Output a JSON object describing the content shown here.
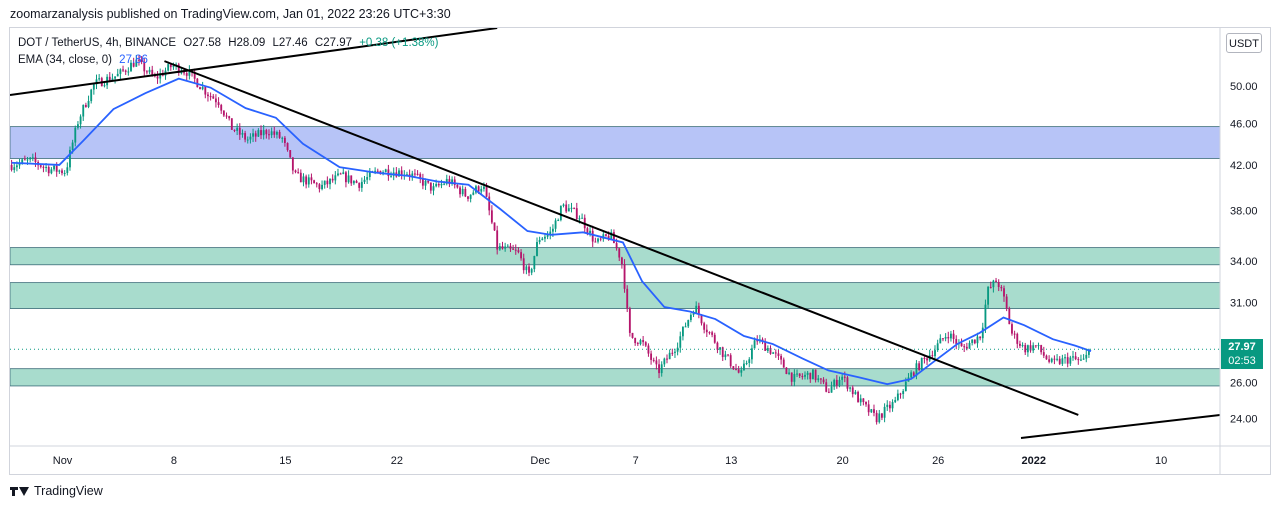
{
  "header": {
    "publisher_line": "zoomarzanalysis published on TradingView.com, Jan 01, 2022 23:26 UTC+3:30"
  },
  "legend": {
    "symbol": "DOT / TetherUS, 4h, BINANCE",
    "open": "O27.58",
    "high": "H28.09",
    "low": "L27.46",
    "close": "C27.97",
    "change": "+0.38 (+1.38%)",
    "ema_label": "EMA (34, close, 0)",
    "ema_value": "27.86"
  },
  "currency_button": "USDT",
  "last_price": {
    "price": "27.97",
    "countdown": "02:53"
  },
  "footer": {
    "brand": "TradingView"
  },
  "colors": {
    "up": "#089981",
    "down": "#b5156b",
    "ema": "#2962ff",
    "zone_blue": "#b7c4f7",
    "zone_green": "#a8dccd",
    "trendline": "#000000"
  },
  "chart_data": {
    "type": "candlestick",
    "y_scale": "log",
    "y_ticks": [
      24,
      26,
      31,
      34,
      38,
      42,
      46,
      50
    ],
    "y_tick_labels": [
      "24.00",
      "26.00",
      "31.00",
      "34.00",
      "38.00",
      "42.00",
      "46.00",
      "50.00"
    ],
    "x_ticks": [
      {
        "label": "Nov",
        "day": 0
      },
      {
        "label": "8",
        "day": 7
      },
      {
        "label": "15",
        "day": 14
      },
      {
        "label": "22",
        "day": 21
      },
      {
        "label": "Dec",
        "day": 30
      },
      {
        "label": "7",
        "day": 36
      },
      {
        "label": "13",
        "day": 42
      },
      {
        "label": "20",
        "day": 49
      },
      {
        "label": "26",
        "day": 55
      },
      {
        "label": "2022",
        "day": 61
      },
      {
        "label": "10",
        "day": 69
      }
    ],
    "x_range_days": [
      -3.3,
      72.7
    ],
    "y_range": [
      22.6,
      56.8
    ],
    "zones": [
      {
        "color": "blue",
        "low": 42.6,
        "high": 45.7
      },
      {
        "color": "green",
        "low": 33.7,
        "high": 35.0
      },
      {
        "color": "green",
        "low": 30.6,
        "high": 32.4
      },
      {
        "color": "green",
        "low": 25.8,
        "high": 26.8
      }
    ],
    "trendlines": [
      {
        "from": {
          "day": -3.3,
          "price": 49.0
        },
        "to": {
          "day": 27.3,
          "price": 56.8
        }
      },
      {
        "from": {
          "day": 6.4,
          "price": 52.8
        },
        "to": {
          "day": 63.8,
          "price": 24.2
        }
      },
      {
        "from": {
          "day": 60.2,
          "price": 23.0
        },
        "to": {
          "day": 72.7,
          "price": 24.2
        }
      }
    ],
    "price_path": [
      [
        -3.2,
        42.0
      ],
      [
        -2.0,
        42.4
      ],
      [
        -0.8,
        41.6
      ],
      [
        0.2,
        41.4
      ],
      [
        1.0,
        46.4
      ],
      [
        2.0,
        50.2
      ],
      [
        3.5,
        51.2
      ],
      [
        4.6,
        52.8
      ],
      [
        5.8,
        50.8
      ],
      [
        6.9,
        52.3
      ],
      [
        7.8,
        51.6
      ],
      [
        9.1,
        49.2
      ],
      [
        9.8,
        48.3
      ],
      [
        10.6,
        45.6
      ],
      [
        11.6,
        44.4
      ],
      [
        12.9,
        45.3
      ],
      [
        13.8,
        44.5
      ],
      [
        14.6,
        41.0
      ],
      [
        16.2,
        40.0
      ],
      [
        17.5,
        41.0
      ],
      [
        18.6,
        40.3
      ],
      [
        19.9,
        41.5
      ],
      [
        21.7,
        41.3
      ],
      [
        23.3,
        39.8
      ],
      [
        24.2,
        40.6
      ],
      [
        25.4,
        39.2
      ],
      [
        26.4,
        40.2
      ],
      [
        27.3,
        35.0
      ],
      [
        28.6,
        34.6
      ],
      [
        29.3,
        32.8
      ],
      [
        29.9,
        35.7
      ],
      [
        30.7,
        36.2
      ],
      [
        31.4,
        38.4
      ],
      [
        32.5,
        37.5
      ],
      [
        33.5,
        35.3
      ],
      [
        34.4,
        36.0
      ],
      [
        35.1,
        34.1
      ],
      [
        35.3,
        32.3
      ],
      [
        35.6,
        28.8
      ],
      [
        36.4,
        28.4
      ],
      [
        37.4,
        26.6
      ],
      [
        38.6,
        28.3
      ],
      [
        39.7,
        30.8
      ],
      [
        40.3,
        29.5
      ],
      [
        41.5,
        27.7
      ],
      [
        42.6,
        26.4
      ],
      [
        43.6,
        28.6
      ],
      [
        44.6,
        27.8
      ],
      [
        45.9,
        26.2
      ],
      [
        47.1,
        26.5
      ],
      [
        48.1,
        25.5
      ],
      [
        48.9,
        26.4
      ],
      [
        50.1,
        24.9
      ],
      [
        51.1,
        24.0
      ],
      [
        52.3,
        24.9
      ],
      [
        53.4,
        26.6
      ],
      [
        54.8,
        28.0
      ],
      [
        55.6,
        29.0
      ],
      [
        56.5,
        28.0
      ],
      [
        57.7,
        28.9
      ],
      [
        58.1,
        31.8
      ],
      [
        58.7,
        32.6
      ],
      [
        59.2,
        31.0
      ],
      [
        59.6,
        29.0
      ],
      [
        60.4,
        28.0
      ],
      [
        61.1,
        28.2
      ],
      [
        62.1,
        27.1
      ],
      [
        63.3,
        27.4
      ],
      [
        64.1,
        27.2
      ],
      [
        64.6,
        27.97
      ]
    ],
    "ema_path": [
      [
        -3.2,
        42.2
      ],
      [
        -0.2,
        42.0
      ],
      [
        1.3,
        44.3
      ],
      [
        3.2,
        47.5
      ],
      [
        5.2,
        49.2
      ],
      [
        7.3,
        50.8
      ],
      [
        9.3,
        49.8
      ],
      [
        11.5,
        47.6
      ],
      [
        13.4,
        46.6
      ],
      [
        15.1,
        44.0
      ],
      [
        17.4,
        41.8
      ],
      [
        19.6,
        41.3
      ],
      [
        21.7,
        41.0
      ],
      [
        23.5,
        40.5
      ],
      [
        25.5,
        40.2
      ],
      [
        27.5,
        38.1
      ],
      [
        29.2,
        36.3
      ],
      [
        30.7,
        36.0
      ],
      [
        32.7,
        36.2
      ],
      [
        35.2,
        35.4
      ],
      [
        36.4,
        32.5
      ],
      [
        37.8,
        30.7
      ],
      [
        39.4,
        30.4
      ],
      [
        41.0,
        29.9
      ],
      [
        42.8,
        28.8
      ],
      [
        44.6,
        28.3
      ],
      [
        46.5,
        27.4
      ],
      [
        48.1,
        26.7
      ],
      [
        50.0,
        26.3
      ],
      [
        51.8,
        25.9
      ],
      [
        53.3,
        26.2
      ],
      [
        54.7,
        27.2
      ],
      [
        56.2,
        28.3
      ],
      [
        57.6,
        29.0
      ],
      [
        59.1,
        30.0
      ],
      [
        60.4,
        29.5
      ],
      [
        62.2,
        28.6
      ],
      [
        63.6,
        28.2
      ],
      [
        64.6,
        27.86
      ]
    ],
    "last_price": 27.97
  }
}
